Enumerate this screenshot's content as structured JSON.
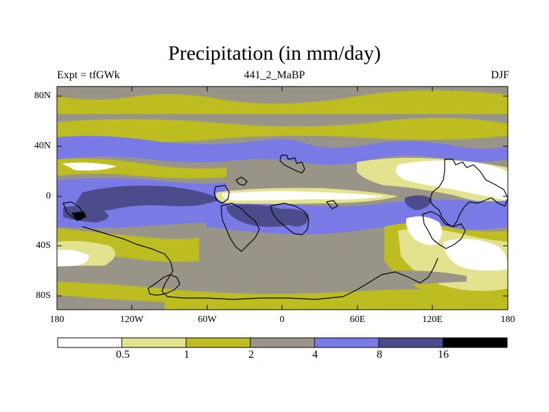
{
  "title": "Precipitation (in mm/day)",
  "subtitle_left": "Expt = tfGWk",
  "subtitle_center": "441_2_MaBP",
  "subtitle_right": "DJF",
  "lat_labels": [
    "80N",
    "40N",
    "0",
    "40S",
    "80S"
  ],
  "lon_labels": [
    "180",
    "120W",
    "60W",
    "0",
    "60E",
    "120E",
    "180"
  ],
  "colorbar": {
    "levels": [
      "0.5",
      "1",
      "2",
      "4",
      "8",
      "16"
    ],
    "colors": [
      "#ffffff",
      "#e3e38f",
      "#bdbd22",
      "#999488",
      "#7a7ae6",
      "#4c4c8c",
      "#000000"
    ]
  }
}
